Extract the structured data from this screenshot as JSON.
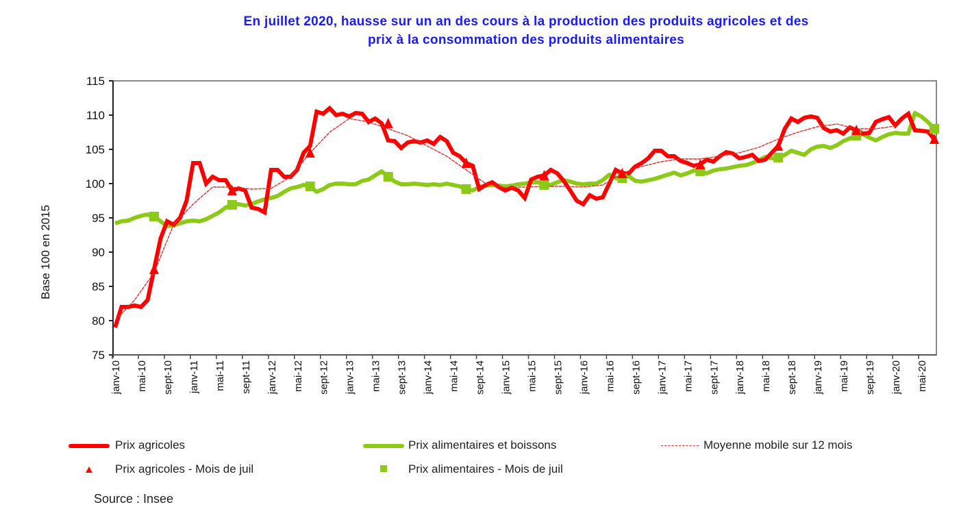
{
  "chart_data": {
    "type": "line",
    "title": [
      "En juillet 2020,  hausse sur un an des cours à la production des produits agricoles et des",
      "prix à la consommation des produits alimentaires"
    ],
    "ylabel": "Base 100 en 2015",
    "xlabel": "",
    "ylim": [
      75,
      115
    ],
    "yticks": [
      75,
      80,
      85,
      90,
      95,
      100,
      105,
      110,
      115
    ],
    "x_start": "janv-10",
    "x_end": "juil-20",
    "tick_labels": [
      "janv-10",
      "mai-10",
      "sept-10",
      "janv-11",
      "mai-11",
      "sept-11",
      "janv-12",
      "mai-12",
      "sept-12",
      "janv-13",
      "mai-13",
      "sept-13",
      "janv-14",
      "mai-14",
      "sept-14",
      "janv-15",
      "mai-15",
      "sept-15",
      "janv-16",
      "mai-16",
      "sept-16",
      "janv-17",
      "mai-17",
      "sept-17",
      "janv-18",
      "mai-18",
      "sept-18",
      "janv-19",
      "mai-19",
      "sept-19",
      "janv-20",
      "mai-20"
    ],
    "grid": false,
    "legend_position": "bottom",
    "series": [
      {
        "name": "Prix agricoles",
        "color": "#ff0000",
        "style": "thick-line",
        "values": [
          79,
          82,
          82,
          82.2,
          82,
          83,
          87.5,
          92,
          94.5,
          94,
          95,
          97.5,
          103,
          103,
          100,
          101,
          100.5,
          100.5,
          99,
          99.3,
          99,
          96.5,
          96.3,
          95.8,
          102,
          102,
          101,
          101,
          102,
          104.5,
          105.5,
          110.5,
          110.2,
          111,
          110,
          110.2,
          109.8,
          110.3,
          110.2,
          109,
          109.5,
          108.8,
          106.3,
          106.2,
          105.2,
          106,
          106.2,
          106,
          106.3,
          105.8,
          106.8,
          106.2,
          104.5,
          104,
          103,
          102.6,
          99.2,
          99.8,
          100.2,
          99.5,
          99,
          99.4,
          99,
          97.9,
          100.6,
          101,
          101.2,
          102,
          101.5,
          100.4,
          99,
          97.5,
          97,
          98.3,
          97.8,
          98,
          100,
          102,
          101.5,
          101.5,
          102.5,
          103,
          103.7,
          104.8,
          104.8,
          104,
          104,
          103.3,
          103,
          102.6,
          102.8,
          103.5,
          103.2,
          104,
          104.6,
          104.4,
          103.7,
          103.9,
          104.2,
          103.3,
          103.5,
          104.5,
          105.5,
          108,
          109.5,
          109,
          109.6,
          109.8,
          109.6,
          108.1,
          107.6,
          107.8,
          107.3,
          108.2,
          107.8,
          107.3,
          107.4,
          109,
          109.4,
          109.7,
          108.5,
          109.5,
          110.2,
          107.8,
          107.7,
          107.6,
          106.5
        ]
      },
      {
        "name": "Prix alimentaires et boissons",
        "color": "#8cc919",
        "style": "thick-line",
        "values": [
          94.2,
          94.5,
          94.6,
          95,
          95.3,
          95.5,
          95.2,
          94.5,
          93.8,
          93.9,
          94.2,
          94.5,
          94.6,
          94.5,
          94.8,
          95.3,
          95.8,
          96.5,
          96.9,
          97,
          96.8,
          97,
          97.4,
          97.7,
          97.9,
          98.2,
          98.8,
          99.3,
          99.5,
          99.8,
          99.6,
          98.8,
          99.2,
          99.8,
          100,
          100,
          99.9,
          99.9,
          100.4,
          100.6,
          101.2,
          101.8,
          101,
          100.3,
          99.9,
          99.9,
          100,
          99.9,
          99.8,
          99.9,
          99.8,
          100,
          99.8,
          99.6,
          99.2,
          99,
          99.5,
          99.7,
          99.8,
          99.7,
          99.6,
          99.7,
          99.9,
          100,
          100.2,
          100.2,
          99.8,
          99.8,
          100.2,
          100.5,
          100.3,
          100,
          99.9,
          100,
          100,
          100.5,
          101.3,
          100.8,
          100.8,
          101.1,
          100.4,
          100.3,
          100.5,
          100.7,
          101,
          101.3,
          101.6,
          101.2,
          101.5,
          101.9,
          101.8,
          101.5,
          101.9,
          102.1,
          102.2,
          102.4,
          102.6,
          102.7,
          103,
          103.4,
          103.9,
          103.7,
          103.8,
          104.2,
          104.8,
          104.5,
          104.2,
          105,
          105.4,
          105.5,
          105.2,
          105.6,
          106.2,
          106.6,
          107,
          107.2,
          106.7,
          106.3,
          106.8,
          107.2,
          107.4,
          107.3,
          107.3,
          110.3,
          109.8,
          109,
          108
        ]
      },
      {
        "name": "Moyenne mobile sur 12 mois",
        "color": "#e03030",
        "style": "thin-dashed-line",
        "step_months": 3,
        "values": [
          80,
          83,
          87,
          94,
          97,
          99.5,
          99.5,
          99.2,
          99.3,
          101,
          104.5,
          107.5,
          109.5,
          109,
          108,
          107,
          105.5,
          104,
          102,
          100,
          99.4,
          99.5,
          99.6,
          99.6,
          99.5,
          99.8,
          101.5,
          102.5,
          103.2,
          103.6,
          103.6,
          104,
          104.5,
          105.3,
          106.5,
          107.5,
          108.3,
          108.7,
          108,
          108,
          108.4
        ]
      },
      {
        "name": "Prix agricoles - Mois de juil",
        "color": "#ff0000",
        "style": "triangle-marker",
        "x": [
          "juil-10",
          "juil-11",
          "juil-12",
          "juil-13",
          "juil-14",
          "juil-15",
          "juil-16",
          "juil-17",
          "juil-18",
          "juil-19",
          "juil-20"
        ],
        "values": [
          87.5,
          99,
          104.5,
          108.8,
          103,
          101.2,
          101.5,
          102.8,
          105.5,
          107.8,
          106.5
        ]
      },
      {
        "name": "Prix alimentaires - Mois de juil",
        "color": "#8cc919",
        "style": "square-marker",
        "x": [
          "juil-10",
          "juil-11",
          "juil-12",
          "juil-13",
          "juil-14",
          "juil-15",
          "juil-16",
          "juil-17",
          "juil-18",
          "juil-19",
          "juil-20"
        ],
        "values": [
          95.2,
          96.9,
          99.6,
          101,
          99.2,
          99.8,
          100.8,
          101.8,
          103.8,
          107,
          108
        ]
      }
    ]
  },
  "source": "Source : Insee"
}
